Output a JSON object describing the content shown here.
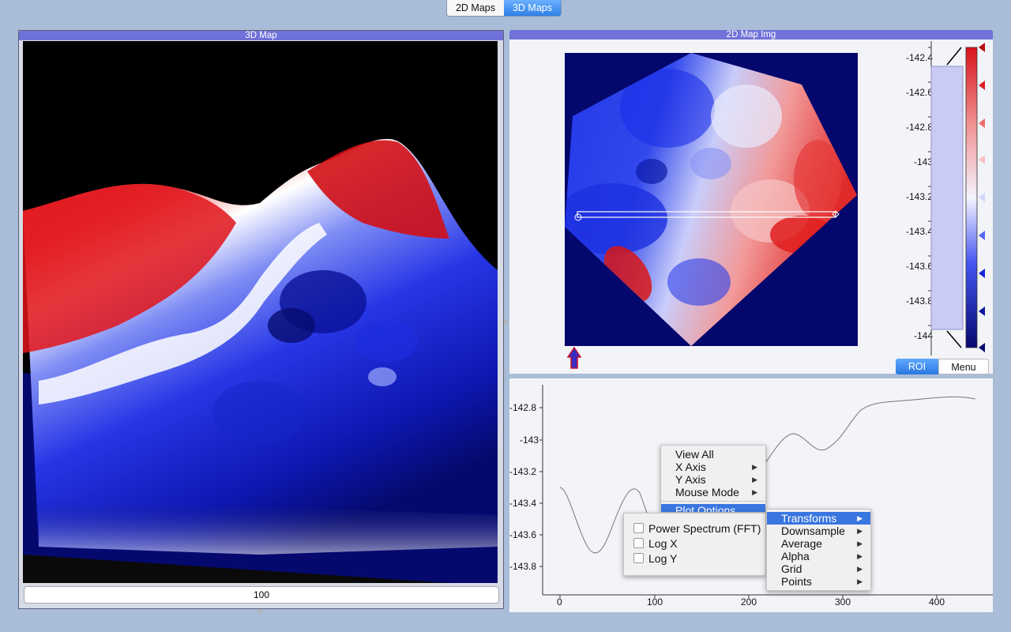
{
  "tabs": [
    {
      "label": "2D Maps",
      "active": false
    },
    {
      "label": "3D Maps",
      "active": true
    }
  ],
  "map3d": {
    "title": "3D Map",
    "slider_value": "100"
  },
  "map2d": {
    "title": "2D Map Img",
    "colorbar_ticks": [
      "-142.4",
      "-142.6",
      "-142.8",
      "-143",
      "-143.2",
      "-143.4",
      "-143.6",
      "-143.8",
      "-144"
    ],
    "roi_button": "ROI",
    "menu_button": "Menu"
  },
  "profile_plot": {
    "y_ticks": [
      "-142.8",
      "-143",
      "-143.2",
      "-143.4",
      "-143.6",
      "-143.8"
    ],
    "x_ticks": [
      "0",
      "100",
      "200",
      "300",
      "400"
    ]
  },
  "context_menu": {
    "items": [
      "View All",
      "X Axis",
      "Y Axis",
      "Mouse Mode"
    ],
    "plot_options_partial": "Plot Options",
    "transforms_submenu": [
      "Transforms",
      "Downsample",
      "Average",
      "Alpha",
      "Grid",
      "Points"
    ],
    "transform_options": [
      "Power Spectrum (FFT)",
      "Log X",
      "Log Y"
    ]
  },
  "colors": {
    "accent": "#3a76e0",
    "panel_title": "#6f72d8",
    "map_background": "#04076c",
    "red": "#d8121b",
    "blue": "#1a2ee8"
  }
}
